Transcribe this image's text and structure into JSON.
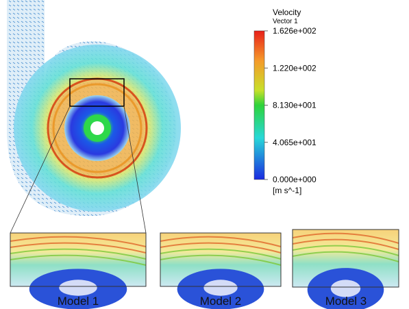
{
  "legend": {
    "title": "Velocity",
    "subtitle": "Vector 1",
    "ticks": [
      "1.626e+002",
      "1.220e+002",
      "8.130e+001",
      "4.065e+001",
      "0.000e+000"
    ],
    "unit": "[m s^-1]"
  },
  "insets": [
    {
      "label": "Model 1"
    },
    {
      "label": "Model 2"
    },
    {
      "label": "Model 3"
    }
  ]
}
